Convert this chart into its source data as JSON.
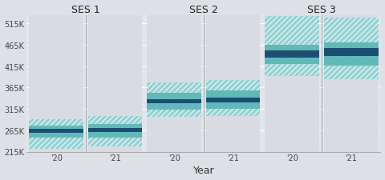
{
  "groups": [
    "SES 1",
    "SES 2",
    "SES 3"
  ],
  "years": [
    "'20",
    "'21"
  ],
  "fig_bg": "#dde0e5",
  "panel_bg": "#e2e5ea",
  "col_bg": "#d8dce2",
  "teal_hatch_face": "#7ecece",
  "teal_solid": "#5ab5b5",
  "teal_dark": "#1b4f72",
  "hatch_edge": "#7ecece",
  "ylim": [
    215000,
    535000
  ],
  "yticks": [
    215000,
    265000,
    315000,
    365000,
    415000,
    465000,
    515000
  ],
  "ytick_labels": [
    "215K",
    "265K",
    "315K",
    "365K",
    "415K",
    "465K",
    "515K"
  ],
  "boxes": {
    "SES 1": {
      "'20": {
        "p10": 222000,
        "p25": 247000,
        "p50_lo": 259000,
        "p50_hi": 268000,
        "p75": 275000,
        "p90": 290000
      },
      "'21": {
        "p10": 228000,
        "p25": 248000,
        "p50_lo": 261000,
        "p50_hi": 271000,
        "p75": 279000,
        "p90": 298000
      }
    },
    "SES 2": {
      "'20": {
        "p10": 296000,
        "p25": 313000,
        "p50_lo": 328000,
        "p50_hi": 338000,
        "p75": 353000,
        "p90": 378000
      },
      "'21": {
        "p10": 298000,
        "p25": 315000,
        "p50_lo": 330000,
        "p50_hi": 341000,
        "p75": 358000,
        "p90": 382000
      }
    },
    "SES 3": {
      "'20": {
        "p10": 392000,
        "p25": 420000,
        "p50_lo": 435000,
        "p50_hi": 452000,
        "p75": 465000,
        "p90": 533000
      },
      "'21": {
        "p10": 385000,
        "p25": 416000,
        "p50_lo": 438000,
        "p50_hi": 457000,
        "p75": 470000,
        "p90": 528000
      }
    }
  }
}
